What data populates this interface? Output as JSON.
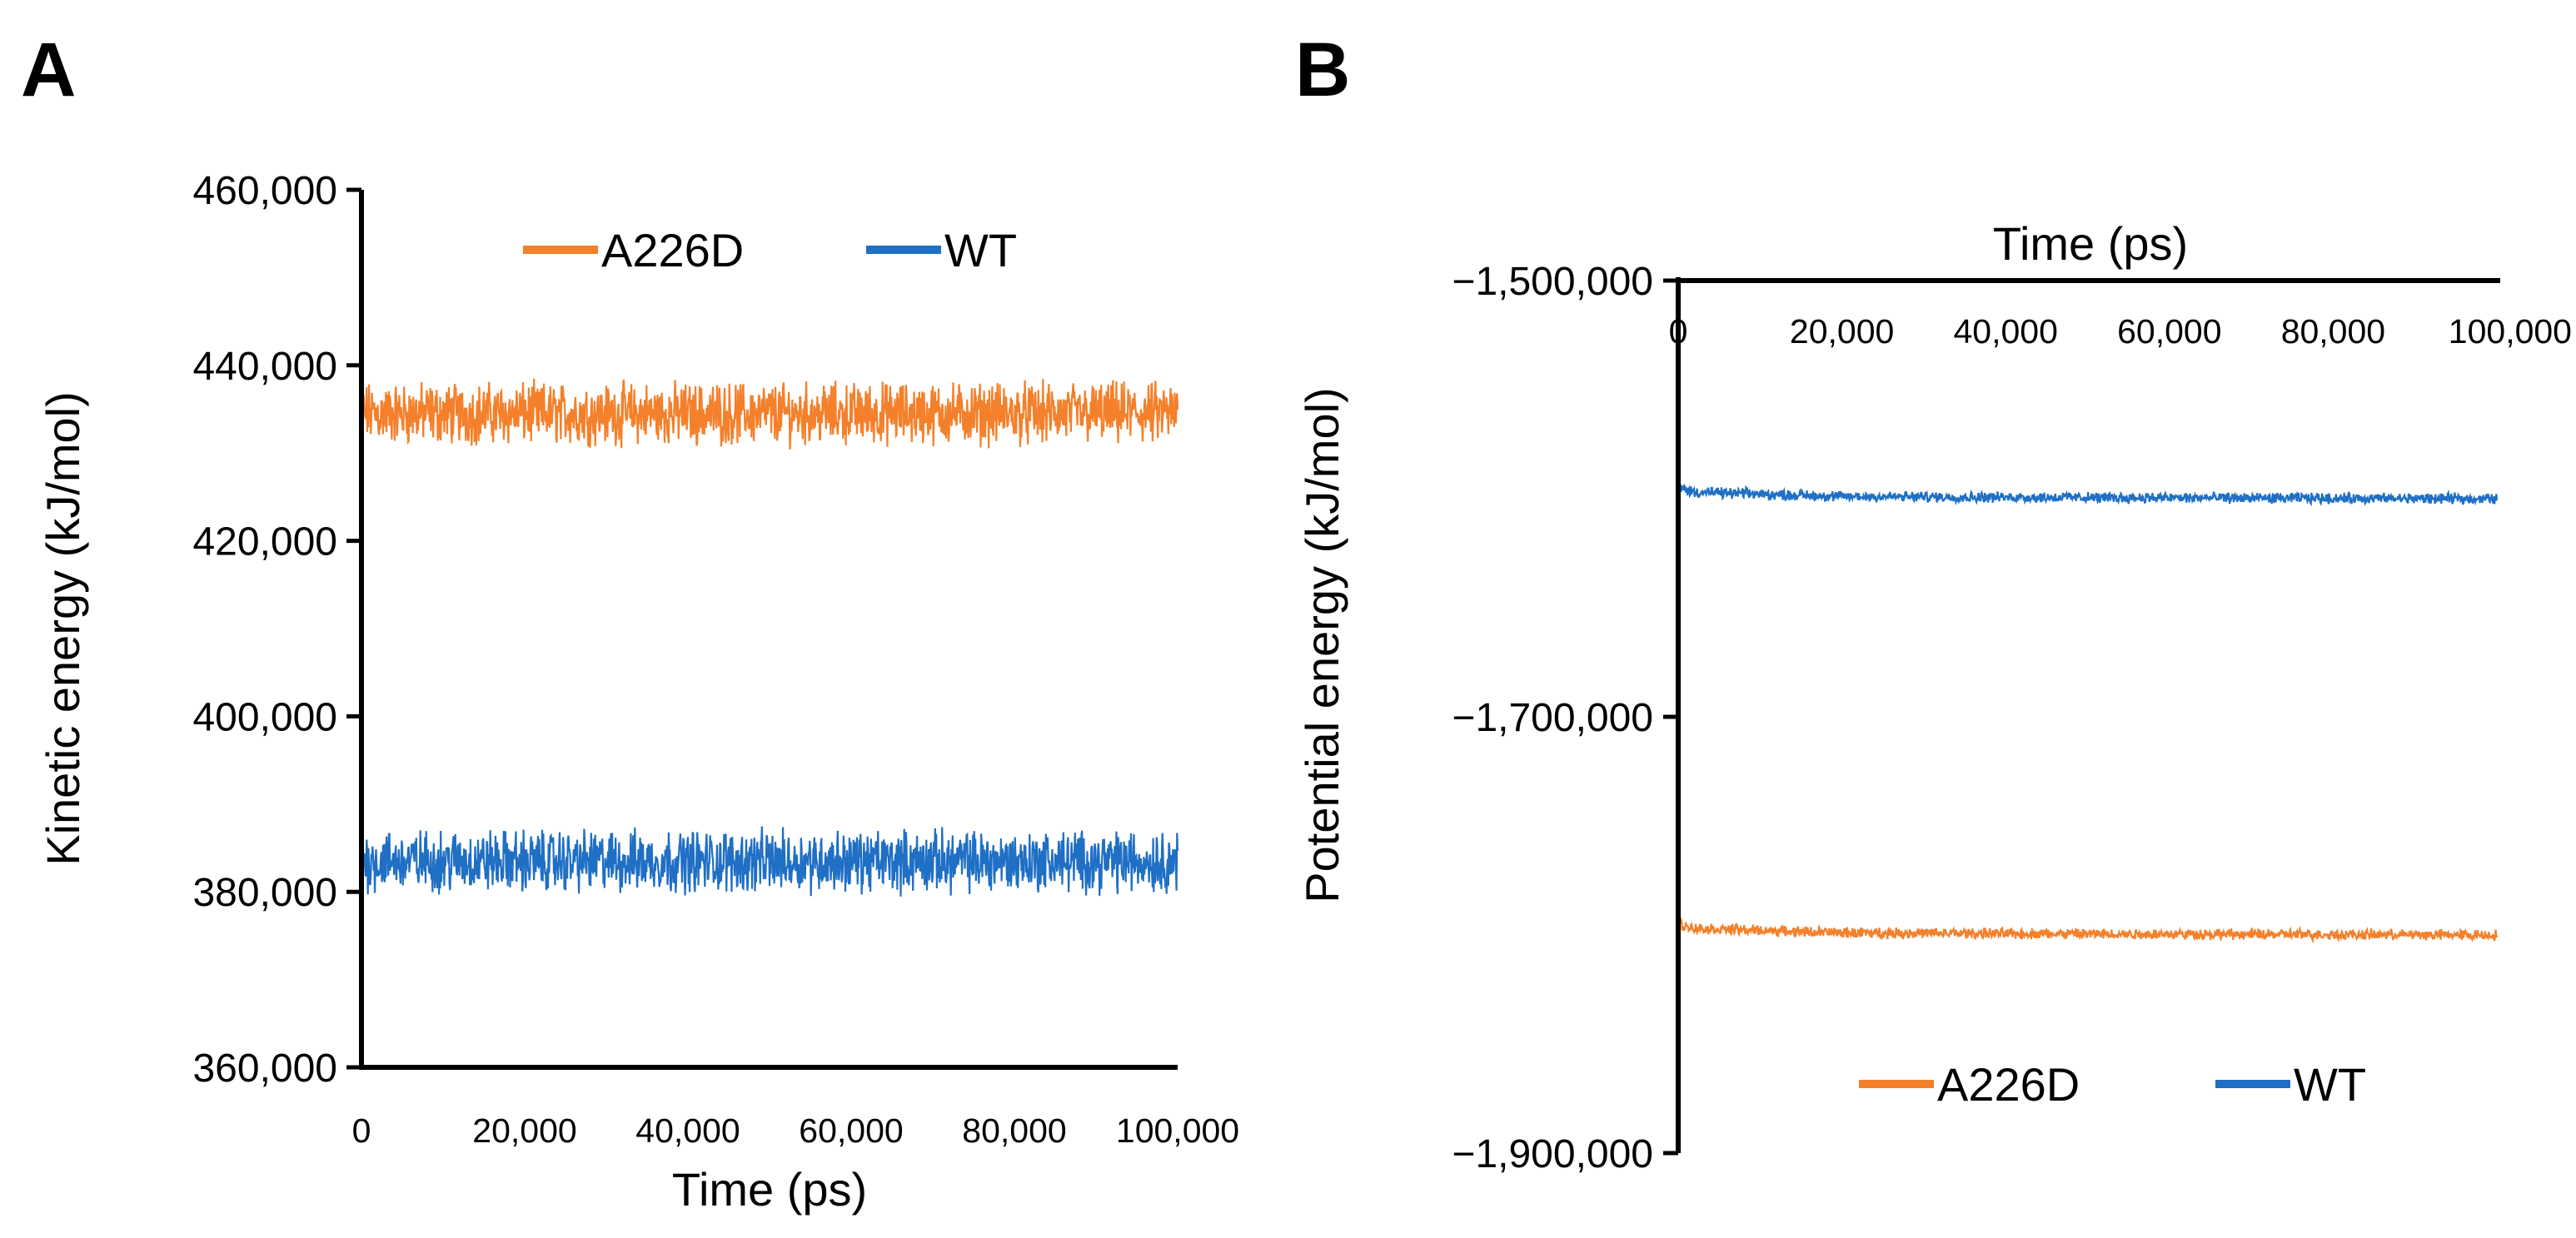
{
  "chart_data": [
    {
      "panel": "A",
      "type": "line",
      "xlabel": "Time (ps)",
      "ylabel": "Kinetic energy (kJ/mol)",
      "xlim": [
        0,
        100000
      ],
      "ylim": [
        360000,
        460000
      ],
      "x_ticks": [
        "0",
        "20,000",
        "40,000",
        "60,000",
        "80,000",
        "100,000"
      ],
      "y_ticks": [
        "360,000",
        "380,000",
        "400,000",
        "420,000",
        "440,000",
        "460,000"
      ],
      "legend": [
        "A226D",
        "WT"
      ],
      "series": [
        {
          "name": "A226D",
          "color": "#f4802b",
          "mean": 434500,
          "noise": 2600,
          "x": [
            0,
            100000
          ],
          "values": [
            434500,
            434500
          ]
        },
        {
          "name": "WT",
          "color": "#1f6fc5",
          "mean": 383500,
          "noise": 2600,
          "x": [
            0,
            100000
          ],
          "values": [
            383500,
            383500
          ]
        }
      ]
    },
    {
      "panel": "B",
      "type": "line",
      "xlabel": "Time (ps)",
      "ylabel": "Potential energy (kJ/mol)",
      "xlim": [
        0,
        100000
      ],
      "ylim": [
        -1900000,
        -1500000
      ],
      "x_ticks": [
        "0",
        "20,000",
        "40,000",
        "60,000",
        "80,000",
        "100,000"
      ],
      "y_ticks": [
        "−1,500,000",
        "−1,700,000",
        "−1,900,000"
      ],
      "legend": [
        "A226D",
        "WT"
      ],
      "series": [
        {
          "name": "WT",
          "color": "#1f6fc5",
          "x": [
            0,
            2000,
            20000,
            50000,
            100000
          ],
          "values": [
            -1595000,
            -1597000,
            -1599000,
            -1599500,
            -1600000
          ],
          "noise": 1800
        },
        {
          "name": "A226D",
          "color": "#f4802b",
          "x": [
            0,
            2000,
            20000,
            50000,
            100000
          ],
          "values": [
            -1795000,
            -1797000,
            -1799000,
            -1799500,
            -1800000
          ],
          "noise": 1800
        }
      ]
    }
  ]
}
